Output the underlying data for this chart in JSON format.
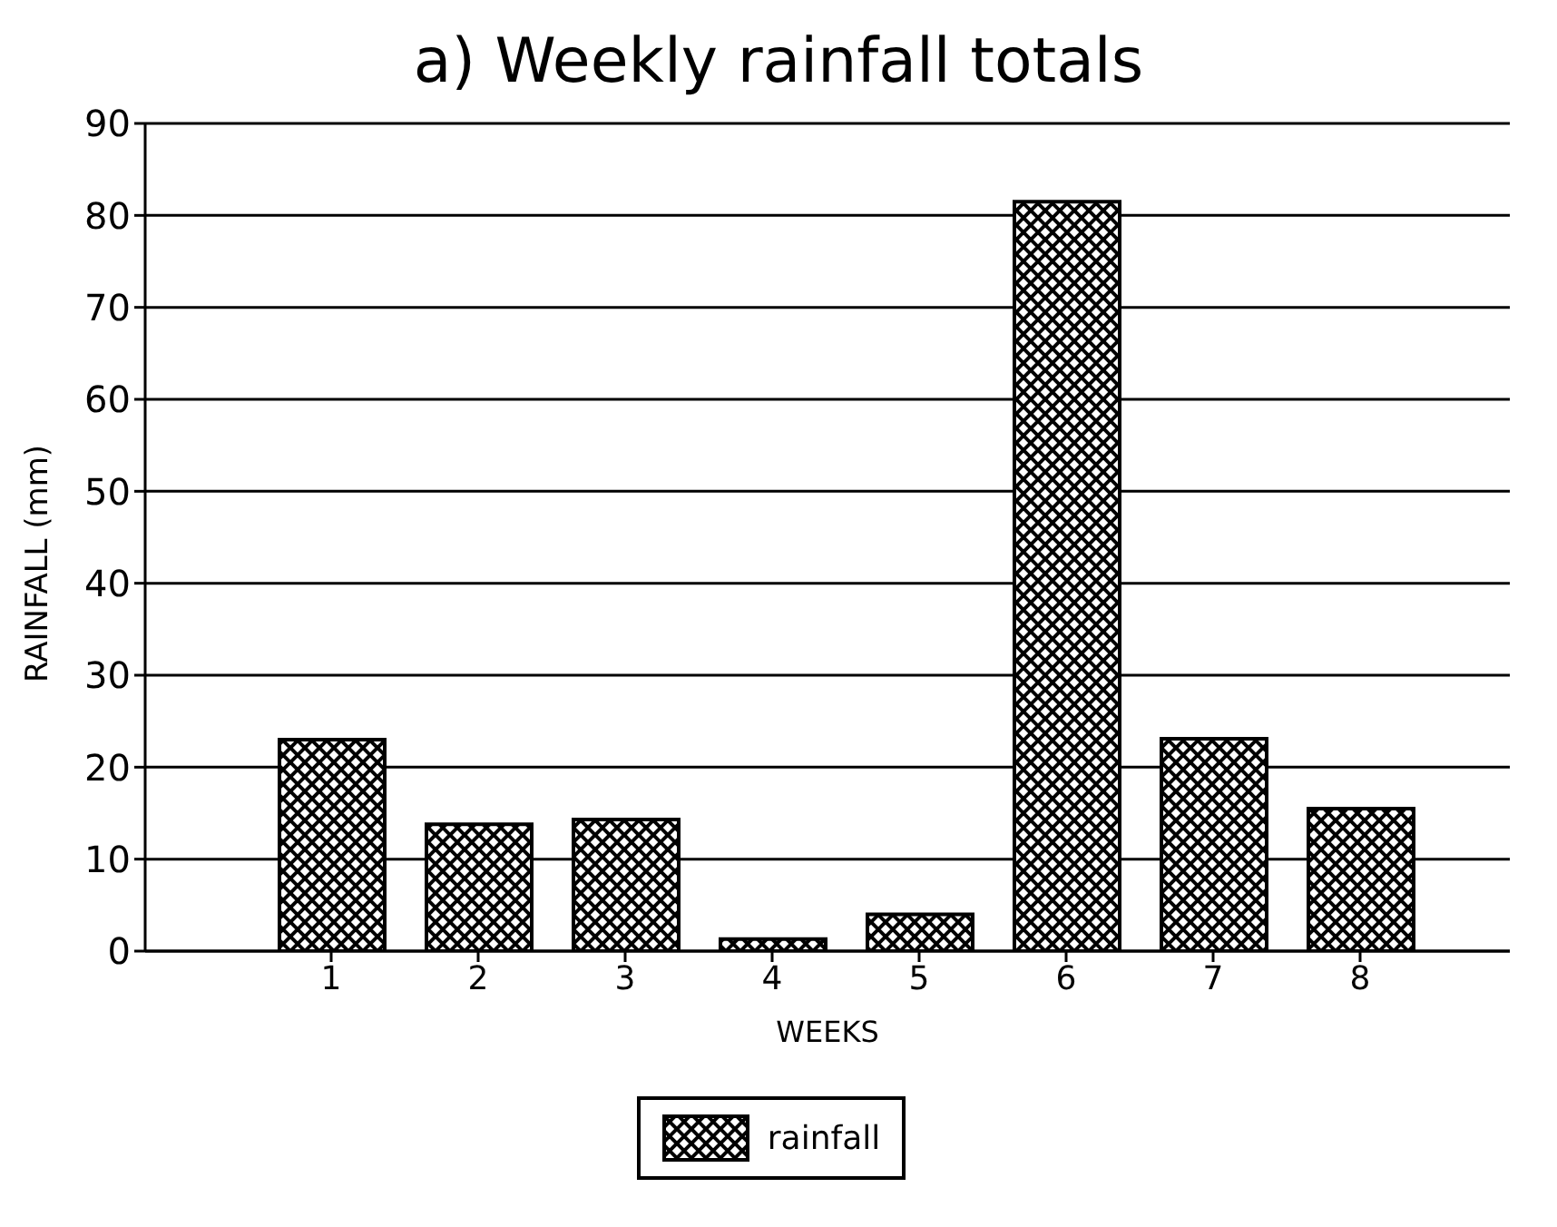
{
  "chart_data": {
    "type": "bar",
    "title": "a) Weekly rainfall totals",
    "xlabel": "WEEKS",
    "ylabel": "RAINFALL (mm)",
    "categories": [
      "1",
      "2",
      "3",
      "4",
      "5",
      "6",
      "7",
      "8"
    ],
    "series": [
      {
        "name": "rainfall",
        "color": "#000000",
        "values": [
          23.0,
          13.8,
          14.3,
          1.3,
          4.0,
          81.5,
          23.1,
          15.5
        ]
      }
    ],
    "ylim": [
      0,
      90
    ],
    "yticks": [
      0,
      10,
      20,
      30,
      40,
      50,
      60,
      70,
      80,
      90
    ],
    "grid": "y",
    "legend": "bottom"
  }
}
